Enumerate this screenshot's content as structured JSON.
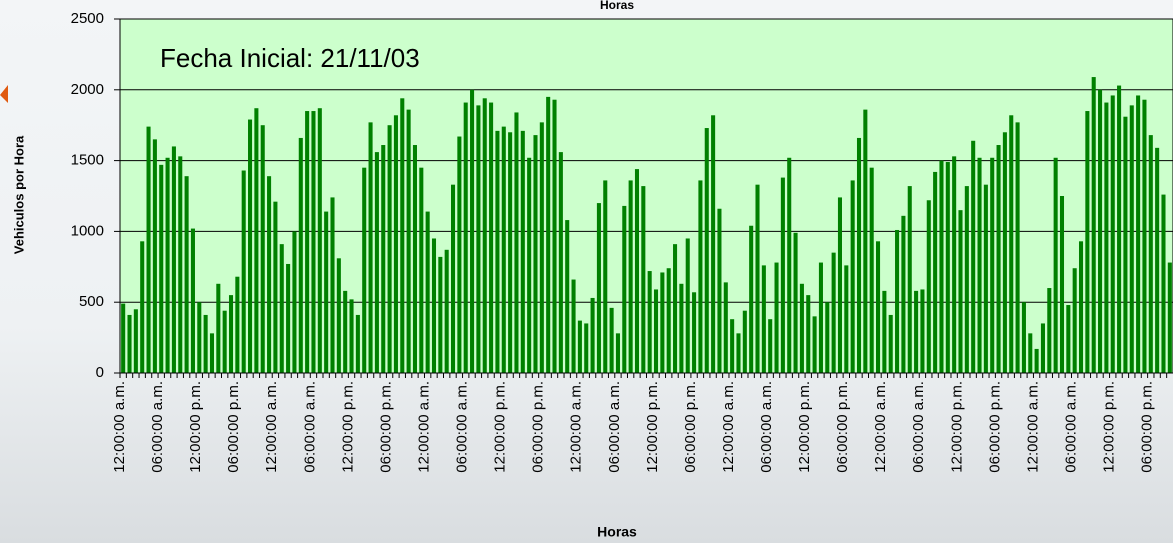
{
  "chart_data": {
    "type": "bar",
    "title": "Horas",
    "x_label": "Horas",
    "y_label": "Vehiculos por Hora",
    "annotation": "Fecha Inicial: 21/11/03",
    "categories": [
      "12:00:00 a.m.",
      null,
      null,
      null,
      null,
      null,
      "06:00:00 a.m.",
      null,
      null,
      null,
      null,
      null,
      "12:00:00 p.m.",
      null,
      null,
      null,
      null,
      null,
      "06:00:00 p.m.",
      null,
      null,
      null,
      null,
      null,
      "12:00:00 a.m.",
      null,
      null,
      null,
      null,
      null,
      "06:00:00 a.m.",
      null,
      null,
      null,
      null,
      null,
      "12:00:00 p.m.",
      null,
      null,
      null,
      null,
      null,
      "06:00:00 p.m.",
      null,
      null,
      null,
      null,
      null,
      "12:00:00 a.m.",
      null,
      null,
      null,
      null,
      null,
      "06:00:00 a.m.",
      null,
      null,
      null,
      null,
      null,
      "12:00:00 p.m.",
      null,
      null,
      null,
      null,
      null,
      "06:00:00 p.m.",
      null,
      null,
      null,
      null,
      null,
      "12:00:00 a.m.",
      null,
      null,
      null,
      null,
      null,
      "06:00:00 a.m.",
      null,
      null,
      null,
      null,
      null,
      "12:00:00 p.m.",
      null,
      null,
      null,
      null,
      null,
      "06:00:00 p.m.",
      null,
      null,
      null,
      null,
      null,
      "12:00:00 a.m.",
      null,
      null,
      null,
      null,
      null,
      "06:00:00 a.m.",
      null,
      null,
      null,
      null,
      null,
      "12:00:00 p.m.",
      null,
      null,
      null,
      null,
      null,
      "06:00:00 p.m.",
      null,
      null,
      null,
      null,
      null,
      "12:00:00 a.m.",
      null,
      null,
      null,
      null,
      null,
      "06:00:00 a.m.",
      null,
      null,
      null,
      null,
      null,
      "12:00:00 p.m.",
      null,
      null,
      null,
      null,
      null,
      "06:00:00 p.m.",
      null,
      null,
      null,
      null,
      null,
      "12:00:00 a.m.",
      null,
      null,
      null,
      null,
      null,
      "06:00:00 a.m.",
      null,
      null,
      null,
      null,
      null,
      "12:00:00 p.m.",
      null,
      null,
      null,
      null,
      null,
      "06:00:00 p.m.",
      null,
      null,
      null
    ],
    "values": [
      490,
      410,
      450,
      930,
      1740,
      1650,
      1470,
      1520,
      1600,
      1530,
      1390,
      1020,
      500,
      410,
      280,
      630,
      440,
      550,
      680,
      1430,
      1790,
      1870,
      1750,
      1390,
      1210,
      910,
      770,
      1000,
      1660,
      1850,
      1850,
      1870,
      1140,
      1240,
      810,
      580,
      520,
      410,
      1450,
      1770,
      1560,
      1610,
      1750,
      1820,
      1940,
      1860,
      1610,
      1450,
      1140,
      950,
      820,
      870,
      1330,
      1670,
      1910,
      2000,
      1890,
      1940,
      1910,
      1710,
      1740,
      1700,
      1840,
      1710,
      1520,
      1680,
      1770,
      1950,
      1930,
      1560,
      1080,
      660,
      370,
      350,
      530,
      1200,
      1360,
      460,
      280,
      1180,
      1360,
      1440,
      1320,
      720,
      590,
      710,
      740,
      910,
      630,
      950,
      570,
      1360,
      1730,
      1820,
      1160,
      640,
      380,
      280,
      440,
      1040,
      1330,
      760,
      380,
      780,
      1380,
      1520,
      990,
      630,
      550,
      400,
      780,
      500,
      850,
      1240,
      760,
      1360,
      1660,
      1860,
      1450,
      930,
      580,
      410,
      1010,
      1110,
      1320,
      580,
      590,
      1220,
      1420,
      1500,
      1490,
      1530,
      1150,
      1320,
      1640,
      1520,
      1330,
      1520,
      1610,
      1700,
      1820,
      1770,
      500,
      280,
      170,
      350,
      600,
      1520,
      1250,
      480,
      740,
      930,
      1850,
      2090,
      2000,
      1910,
      1960,
      2030,
      1810,
      1890,
      1960,
      1930,
      1680,
      1590,
      1260,
      780
    ],
    "color": "#008000",
    "plot_background": "#ccffcc",
    "ylim": [
      0,
      2500
    ],
    "yticks": [
      0,
      500,
      1000,
      1500,
      2000,
      2500
    ],
    "grid": true
  }
}
